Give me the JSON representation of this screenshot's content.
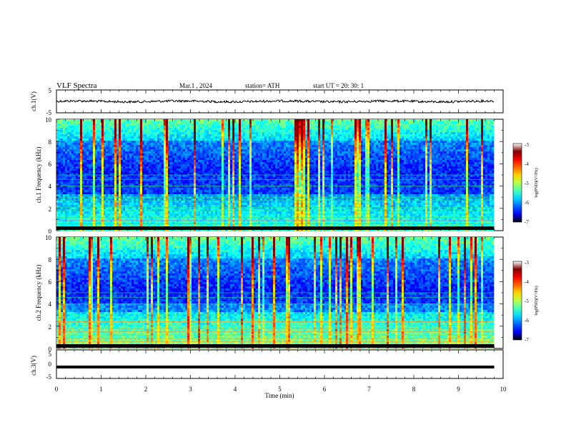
{
  "header": {
    "title": "VLF Spectra",
    "date": "Mar.1 , 2024",
    "station": "station= ATH",
    "start_ut": "start UT = 20: 30: 1"
  },
  "chart_data": [
    {
      "id": "ch1-waveform",
      "type": "line",
      "ylabel": "ch.1(V)",
      "ylim": [
        -5,
        5
      ],
      "yticks": [
        "5",
        "-5"
      ],
      "xlim": [
        0,
        10
      ],
      "series": [
        {
          "color": "#000000"
        }
      ]
    },
    {
      "id": "ch1-spectrogram",
      "type": "heatmap",
      "ylabel": "ch.1 Frequency (kHz)",
      "ylim": [
        0,
        10
      ],
      "yticks": [
        "0",
        "2",
        "4",
        "6",
        "8",
        "10"
      ],
      "xlim": [
        0,
        10
      ],
      "data_extent_min": 9.8,
      "colorbar": {
        "label": "log(PSD)(V²/Hz)",
        "range": [
          -7,
          -3
        ],
        "ticks": [
          "-3",
          "-4",
          "-5",
          "-6",
          "-7"
        ]
      }
    },
    {
      "id": "ch2-spectrogram",
      "type": "heatmap",
      "ylabel": "ch.2 Frequency (kHz)",
      "ylim": [
        0,
        10
      ],
      "yticks": [
        "0",
        "2",
        "4",
        "6",
        "8",
        "10"
      ],
      "xlim": [
        0,
        10
      ],
      "data_extent_min": 9.8,
      "colorbar": {
        "label": "log(PSD)(V²/Hz)",
        "range": [
          -7,
          -3
        ],
        "ticks": [
          "-3",
          "-4",
          "-5",
          "-6",
          "-7"
        ]
      }
    },
    {
      "id": "ch3-waveform",
      "type": "line",
      "ylabel": "ch.3(V)",
      "ylim": [
        -5,
        5
      ],
      "yticks": [
        "5",
        "0",
        "-5"
      ],
      "xlim": [
        0,
        10
      ],
      "xticks": [
        "0",
        "1",
        "2",
        "3",
        "4",
        "5",
        "6",
        "7",
        "8",
        "9",
        "10"
      ],
      "xlabel": "Time (min)",
      "series": [
        {
          "color": "#000000"
        }
      ]
    }
  ]
}
